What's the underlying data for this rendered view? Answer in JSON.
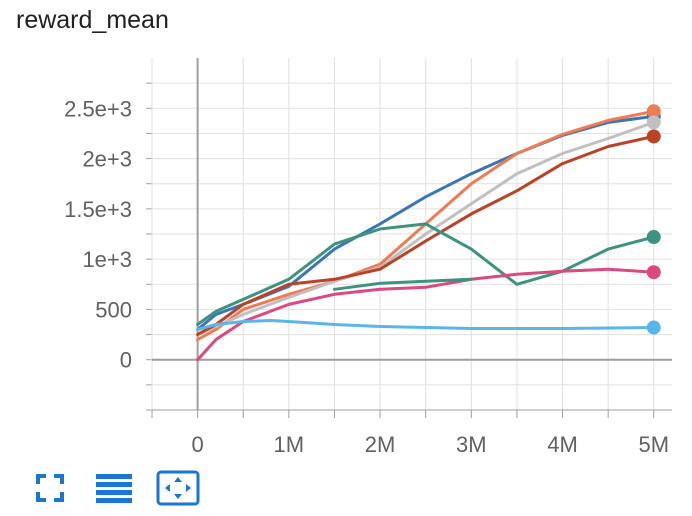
{
  "title": "reward_mean",
  "colors": {
    "grid": "#e0e0e0",
    "axis": "#9e9e9e",
    "toolbar_icon": "#1976d2"
  },
  "toolbar": {
    "buttons": [
      {
        "name": "fullscreen-button",
        "icon": "fullscreen-icon"
      },
      {
        "name": "toggle-log-button",
        "icon": "lines-icon"
      },
      {
        "name": "fit-domain-button",
        "icon": "fit-domain-icon"
      }
    ]
  },
  "chart_data": {
    "type": "line",
    "title": "reward_mean",
    "xlabel": "",
    "ylabel": "",
    "x_ticks": [
      {
        "value": 0,
        "label": "0"
      },
      {
        "value": 1000000,
        "label": "1M"
      },
      {
        "value": 2000000,
        "label": "2M"
      },
      {
        "value": 3000000,
        "label": "3M"
      },
      {
        "value": 4000000,
        "label": "4M"
      },
      {
        "value": 5000000,
        "label": "5M"
      }
    ],
    "y_ticks": [
      {
        "value": 0,
        "label": "0"
      },
      {
        "value": 500,
        "label": "500"
      },
      {
        "value": 1000,
        "label": "1e+3"
      },
      {
        "value": 1500,
        "label": "1.5e+3"
      },
      {
        "value": 2000,
        "label": "2e+3"
      },
      {
        "value": 2500,
        "label": "2.5e+3"
      }
    ],
    "xlim": [
      -500000,
      5200000
    ],
    "ylim": [
      -500,
      3000
    ],
    "grid": true,
    "series": [
      {
        "color": "#3a76b5",
        "x": [
          0,
          200000,
          500000,
          1000000,
          1500000,
          2000000,
          2500000,
          3000000,
          3500000,
          4000000,
          4500000,
          5000000
        ],
        "y": [
          300,
          450,
          550,
          730,
          1100,
          1350,
          1620,
          1850,
          2050,
          2230,
          2360,
          2420
        ]
      },
      {
        "color": "#ef7b53",
        "x": [
          0,
          200000,
          500000,
          1000000,
          1500000,
          2000000,
          2500000,
          3000000,
          3500000,
          4000000,
          4500000,
          5000000
        ],
        "y": [
          200,
          300,
          500,
          650,
          780,
          950,
          1350,
          1750,
          2050,
          2240,
          2380,
          2470
        ]
      },
      {
        "color": "#c0c0c0",
        "x": [
          0,
          200000,
          500000,
          1000000,
          1500000,
          2000000,
          2500000,
          3000000,
          3500000,
          4000000,
          4500000,
          5000000
        ],
        "y": [
          250,
          330,
          450,
          620,
          780,
          920,
          1250,
          1550,
          1850,
          2050,
          2200,
          2360
        ]
      },
      {
        "color": "#bc4227",
        "x": [
          0,
          200000,
          500000,
          1000000,
          1500000,
          2000000,
          2500000,
          3000000,
          3500000,
          4000000,
          4500000,
          5000000
        ],
        "y": [
          250,
          350,
          550,
          750,
          800,
          900,
          1180,
          1450,
          1680,
          1950,
          2120,
          2220
        ]
      },
      {
        "color": "#3b9380",
        "x": [
          0,
          200000,
          500000,
          1000000,
          1500000,
          2000000,
          2500000,
          3000000,
          3500000,
          4000000,
          4500000,
          5000000
        ],
        "y": [
          350,
          480,
          600,
          800,
          1150,
          1300,
          1350,
          1100,
          750,
          880,
          1100,
          1220
        ]
      },
      {
        "color": "#dc4880",
        "x": [
          0,
          200000,
          500000,
          1000000,
          1500000,
          2000000,
          2500000,
          3000000,
          3500000,
          4000000,
          4500000,
          5000000
        ],
        "y": [
          0,
          200,
          380,
          550,
          650,
          700,
          720,
          800,
          850,
          880,
          900,
          870
        ]
      },
      {
        "color": "#5ab6e8",
        "x": [
          0,
          200000,
          500000,
          800000,
          1000000,
          1500000,
          2000000,
          2500000,
          3000000,
          3500000,
          4000000,
          4500000,
          5000000
        ],
        "y": [
          300,
          350,
          380,
          390,
          380,
          350,
          330,
          320,
          310,
          310,
          310,
          315,
          320
        ]
      },
      {
        "color": "#3b9380",
        "x": [
          1500000,
          2000000,
          2500000,
          3000000
        ],
        "y": [
          700,
          760,
          780,
          800
        ]
      }
    ]
  }
}
